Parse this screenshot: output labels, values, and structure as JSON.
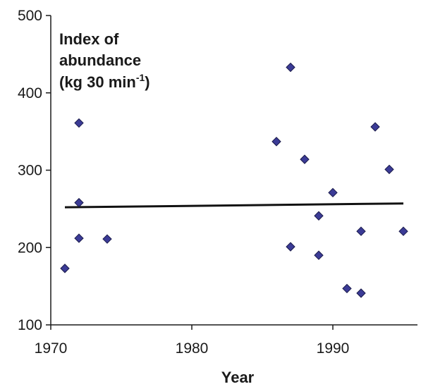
{
  "chart_data": {
    "type": "scatter",
    "title_lines": [
      "Index of",
      "abundance",
      "(kg 30 min"
    ],
    "title_superscript": "-1",
    "title_suffix": ")",
    "xlabel": "Year",
    "ylabel": "",
    "xlim": [
      1970,
      1996
    ],
    "ylim": [
      100,
      500
    ],
    "x_ticks": [
      1970,
      1980,
      1990
    ],
    "y_ticks": [
      100,
      200,
      300,
      400,
      500
    ],
    "grid": false,
    "legend": "none",
    "colors": {
      "marker_fill": "#3b3b96",
      "marker_stroke": "#1a1a4a",
      "trend_line": "#111111",
      "axis": "#1a1a1a"
    },
    "points": [
      {
        "x": 1971,
        "y": 173
      },
      {
        "x": 1972,
        "y": 361
      },
      {
        "x": 1972,
        "y": 258
      },
      {
        "x": 1972,
        "y": 212
      },
      {
        "x": 1974,
        "y": 211
      },
      {
        "x": 1986,
        "y": 337
      },
      {
        "x": 1987,
        "y": 433
      },
      {
        "x": 1987,
        "y": 201
      },
      {
        "x": 1988,
        "y": 314
      },
      {
        "x": 1989,
        "y": 241
      },
      {
        "x": 1989,
        "y": 190
      },
      {
        "x": 1990,
        "y": 271
      },
      {
        "x": 1991,
        "y": 147
      },
      {
        "x": 1992,
        "y": 221
      },
      {
        "x": 1992,
        "y": 141
      },
      {
        "x": 1993,
        "y": 356
      },
      {
        "x": 1994,
        "y": 301
      },
      {
        "x": 1995,
        "y": 221
      }
    ],
    "trend_line": {
      "x": [
        1971,
        1995
      ],
      "y": [
        252,
        257
      ]
    }
  }
}
